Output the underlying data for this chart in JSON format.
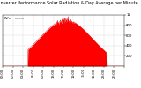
{
  "title": "Solar PV/Inverter Performance Solar Radiation & Day Average per Minute",
  "title_fontsize": 3.5,
  "bg_color": "#ffffff",
  "plot_bg_color": "#ffffff",
  "grid_color": "#aaaaaa",
  "fill_color": "#ff0000",
  "line_color": "#dd0000",
  "ylim": [
    0,
    1000
  ],
  "yticks": [
    200,
    400,
    600,
    800,
    1000
  ],
  "ytick_labels": [
    "200",
    "400",
    "600",
    "800",
    "1k"
  ],
  "xlim": [
    0,
    288
  ],
  "xtick_positions": [
    0,
    24,
    48,
    72,
    96,
    120,
    144,
    168,
    192,
    216,
    240,
    264,
    288
  ],
  "xtick_labels": [
    "00:00",
    "02:00",
    "04:00",
    "06:00",
    "08:00",
    "10:00",
    "12:00",
    "14:00",
    "16:00",
    "18:00",
    "20:00",
    "22:00",
    ""
  ],
  "tick_fontsize": 2.8,
  "num_points": 289,
  "curve_start": 60,
  "curve_end": 245,
  "curve_peak_x": 150,
  "curve_peak_y": 900
}
